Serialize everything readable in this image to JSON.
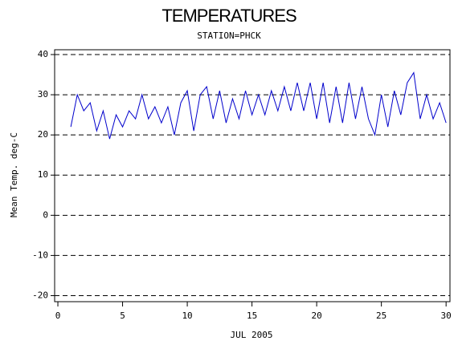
{
  "chart_data": {
    "type": "line",
    "title": "TEMPERATURES",
    "subtitle": "STATION=PHCK",
    "x_label": "JUL 2005",
    "y_label": "Mean Temp. deg-C",
    "xlim": [
      -0.25,
      30.3
    ],
    "xticks": [
      0,
      5,
      10,
      15,
      20,
      25,
      30
    ],
    "ylim": [
      -21.5,
      41.2
    ],
    "yticks": [
      -20,
      -10,
      0,
      10,
      20,
      30,
      40
    ],
    "grid": true,
    "x": [
      1,
      1.5,
      2,
      2.5,
      3,
      3.5,
      4,
      4.5,
      5,
      5.5,
      6,
      6.5,
      7,
      7.5,
      8,
      8.5,
      9,
      9.5,
      10,
      10.5,
      11,
      11.5,
      12,
      12.5,
      13,
      13.5,
      14,
      14.5,
      15,
      15.5,
      16,
      16.5,
      17,
      17.5,
      18,
      18.5,
      19,
      19.5,
      20,
      20.5,
      21,
      21.5,
      22,
      22.5,
      23,
      23.5,
      24,
      24.5,
      25,
      25.5,
      26,
      26.5,
      27,
      27.5,
      28,
      28.5,
      29,
      29.5,
      30
    ],
    "series": [
      {
        "name": "Mean Temp",
        "color": "#0000cc",
        "values": [
          22,
          30,
          26,
          28,
          21,
          26,
          19,
          25,
          22,
          26,
          24,
          30,
          24,
          27,
          23,
          27,
          20,
          28,
          31,
          21,
          30,
          32,
          24,
          31,
          23,
          29,
          24,
          31,
          25,
          30,
          25,
          31,
          26,
          32,
          26,
          33,
          26,
          33,
          24,
          33,
          23,
          32,
          23,
          33,
          24,
          32,
          24,
          20,
          30,
          22,
          31,
          25,
          33,
          35.5,
          24,
          30,
          24,
          28,
          23
        ]
      }
    ]
  }
}
